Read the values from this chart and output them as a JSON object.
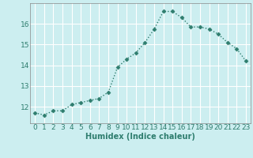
{
  "x": [
    0,
    1,
    2,
    3,
    4,
    5,
    6,
    7,
    8,
    9,
    10,
    11,
    12,
    13,
    14,
    15,
    16,
    17,
    18,
    19,
    20,
    21,
    22,
    23
  ],
  "y": [
    11.7,
    11.6,
    11.8,
    11.8,
    12.1,
    12.2,
    12.3,
    12.4,
    12.7,
    13.9,
    14.3,
    14.6,
    15.1,
    15.75,
    16.6,
    16.6,
    16.3,
    15.85,
    15.85,
    15.75,
    15.5,
    15.1,
    14.8,
    14.2
  ],
  "line_color": "#2e7d6e",
  "marker": "D",
  "marker_size": 2.5,
  "bg_color": "#cceef0",
  "grid_color": "#ffffff",
  "xlabel": "Humidex (Indice chaleur)",
  "ylim": [
    11.2,
    17.0
  ],
  "xlim": [
    -0.5,
    23.5
  ],
  "yticks": [
    12,
    13,
    14,
    15,
    16
  ],
  "xtick_labels": [
    "0",
    "1",
    "2",
    "3",
    "4",
    "5",
    "6",
    "7",
    "8",
    "9",
    "10",
    "11",
    "12",
    "13",
    "14",
    "15",
    "16",
    "17",
    "18",
    "19",
    "20",
    "21",
    "22",
    "23"
  ],
  "xlabel_fontsize": 7,
  "tick_fontsize": 6.5,
  "line_width": 1.0,
  "title_fontsize": 7
}
